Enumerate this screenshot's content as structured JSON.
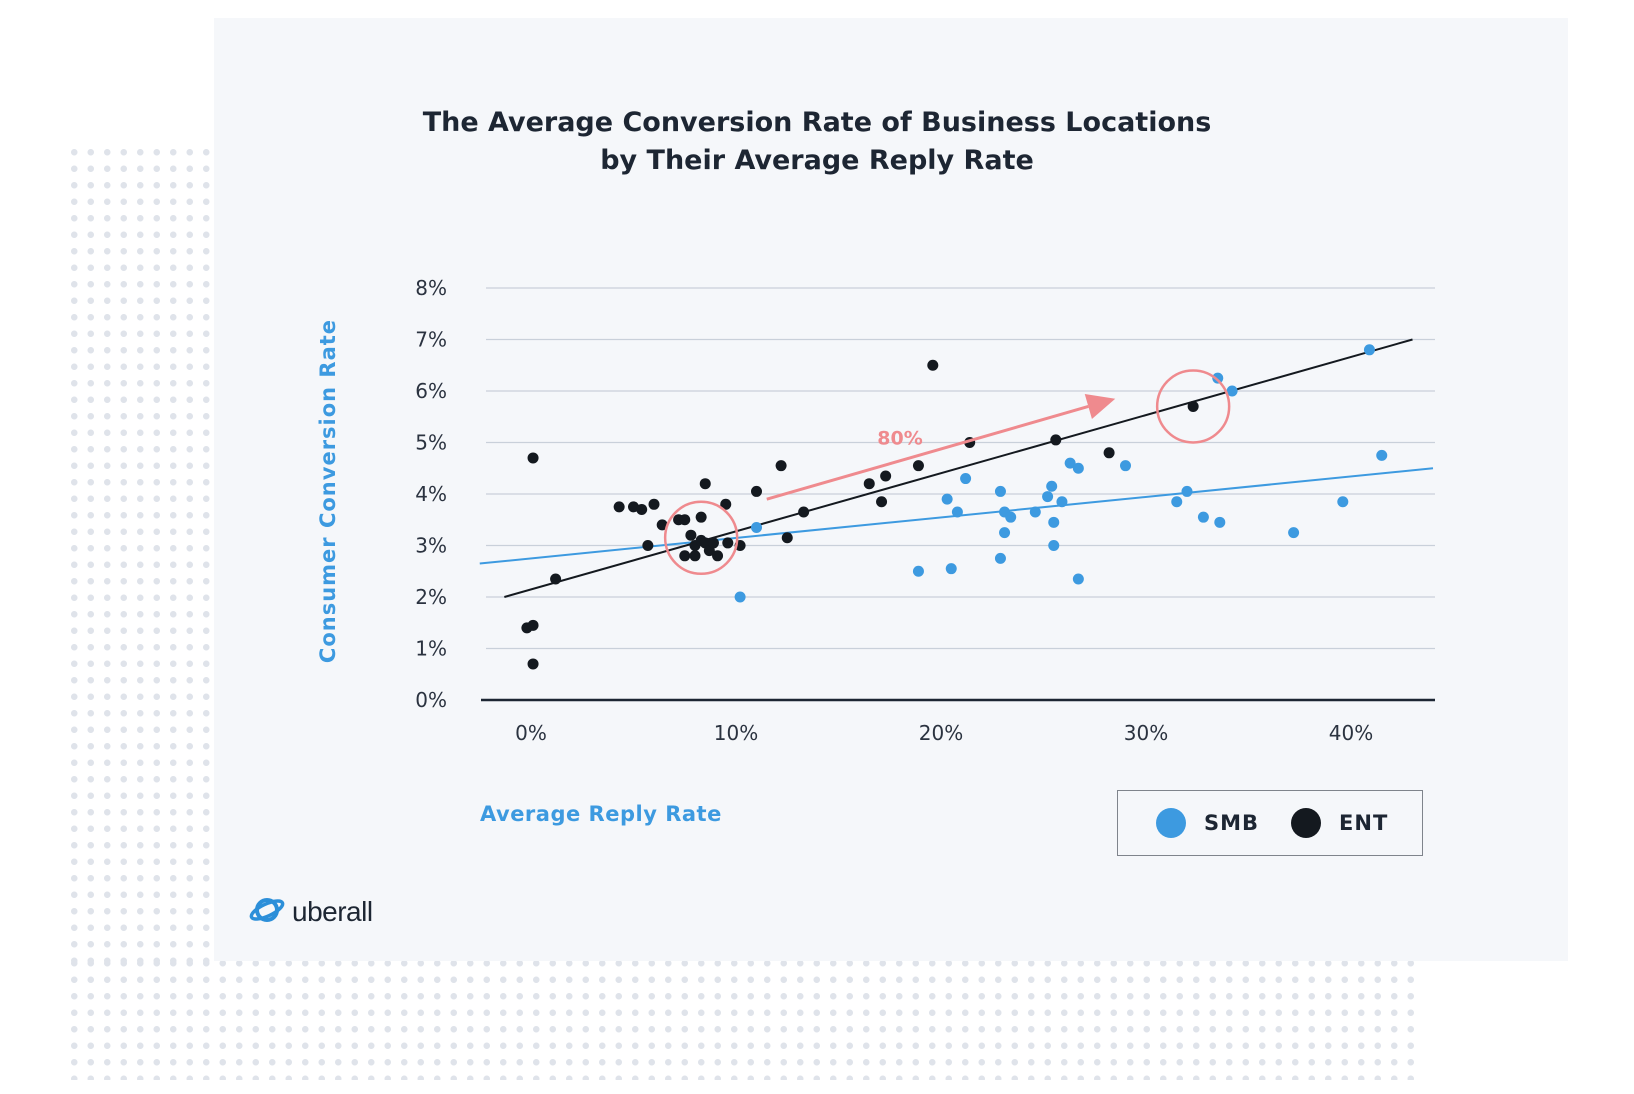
{
  "chart_data": {
    "type": "scatter",
    "title": "The Average Conversion Rate of Business Locations",
    "subtitle": "by Their Average Reply Rate",
    "xlabel": "Average Reply Rate",
    "ylabel": "Consumer Conversion Rate",
    "xlim": [
      -2.5,
      44
    ],
    "ylim": [
      0,
      8
    ],
    "x_ticks": [
      0,
      10,
      20,
      30,
      40
    ],
    "x_tick_labels": [
      "0%",
      "10%",
      "20%",
      "30%",
      "40%"
    ],
    "y_ticks": [
      0,
      1,
      2,
      3,
      4,
      5,
      6,
      7,
      8
    ],
    "y_tick_labels": [
      "0%",
      "1%",
      "2%",
      "3%",
      "4%",
      "5%",
      "6%",
      "7%",
      "8%"
    ],
    "grid": true,
    "legend_position": "bottom-right",
    "series": [
      {
        "name": "SMB",
        "color": "#3d9ae0",
        "points": [
          [
            10.2,
            2.0
          ],
          [
            11.0,
            3.35
          ],
          [
            18.9,
            2.5
          ],
          [
            20.3,
            3.9
          ],
          [
            20.5,
            2.55
          ],
          [
            20.8,
            3.65
          ],
          [
            21.2,
            4.3
          ],
          [
            22.9,
            4.05
          ],
          [
            22.9,
            2.75
          ],
          [
            23.1,
            3.65
          ],
          [
            23.1,
            3.25
          ],
          [
            23.4,
            3.55
          ],
          [
            24.6,
            3.65
          ],
          [
            25.2,
            3.95
          ],
          [
            25.4,
            4.15
          ],
          [
            25.5,
            3.45
          ],
          [
            25.5,
            3.0
          ],
          [
            25.9,
            3.85
          ],
          [
            26.3,
            4.6
          ],
          [
            26.7,
            4.5
          ],
          [
            26.7,
            2.35
          ],
          [
            29.0,
            4.55
          ],
          [
            31.5,
            3.85
          ],
          [
            32.0,
            4.05
          ],
          [
            32.8,
            3.55
          ],
          [
            33.6,
            3.45
          ],
          [
            33.5,
            6.25
          ],
          [
            34.2,
            6.0
          ],
          [
            37.2,
            3.25
          ],
          [
            39.6,
            3.85
          ],
          [
            40.9,
            6.8
          ],
          [
            41.5,
            4.75
          ]
        ]
      },
      {
        "name": "ENT",
        "color": "#14191f",
        "points": [
          [
            -0.2,
            1.4
          ],
          [
            0.1,
            1.45
          ],
          [
            0.1,
            0.7
          ],
          [
            0.1,
            4.7
          ],
          [
            1.2,
            2.35
          ],
          [
            4.3,
            3.75
          ],
          [
            5.0,
            3.75
          ],
          [
            5.4,
            3.7
          ],
          [
            5.7,
            3.0
          ],
          [
            6.0,
            3.8
          ],
          [
            6.4,
            3.4
          ],
          [
            7.2,
            3.5
          ],
          [
            7.5,
            3.5
          ],
          [
            7.5,
            2.8
          ],
          [
            7.8,
            3.2
          ],
          [
            8.0,
            2.8
          ],
          [
            8.0,
            3.0
          ],
          [
            8.3,
            3.55
          ],
          [
            8.3,
            3.1
          ],
          [
            8.5,
            3.05
          ],
          [
            8.5,
            4.2
          ],
          [
            8.7,
            2.9
          ],
          [
            8.9,
            3.05
          ],
          [
            9.1,
            2.8
          ],
          [
            9.5,
            3.8
          ],
          [
            9.6,
            3.05
          ],
          [
            10.2,
            3.0
          ],
          [
            11.0,
            4.05
          ],
          [
            12.2,
            4.55
          ],
          [
            12.5,
            3.15
          ],
          [
            13.3,
            3.65
          ],
          [
            16.5,
            4.2
          ],
          [
            17.1,
            3.85
          ],
          [
            17.3,
            4.35
          ],
          [
            18.9,
            4.55
          ],
          [
            19.6,
            6.5
          ],
          [
            21.4,
            5.0
          ],
          [
            25.6,
            5.05
          ],
          [
            28.2,
            4.8
          ],
          [
            32.3,
            5.7
          ]
        ]
      }
    ],
    "trendlines": [
      {
        "name": "SMB",
        "color": "#3d9ae0",
        "from": [
          -2.5,
          2.65
        ],
        "to": [
          44.0,
          4.5
        ]
      },
      {
        "name": "ENT",
        "color": "#14191f",
        "from": [
          -1.3,
          2.0
        ],
        "to": [
          43.0,
          7.0
        ]
      }
    ],
    "highlights": [
      {
        "center": [
          8.3,
          3.15
        ],
        "color": "#ef8a8e"
      },
      {
        "center": [
          32.3,
          5.7
        ],
        "color": "#ef8a8e"
      }
    ],
    "annotation": {
      "text": "80%",
      "color": "#ef8a8e",
      "arrow_from": [
        11.5,
        3.9
      ],
      "arrow_to": [
        28.5,
        5.85
      ],
      "label_at": [
        18.0,
        5.1
      ]
    }
  },
  "brand": {
    "logo_text": "uberall",
    "logo_icon": "planet-icon",
    "logo_color": "#2c8fd9"
  }
}
